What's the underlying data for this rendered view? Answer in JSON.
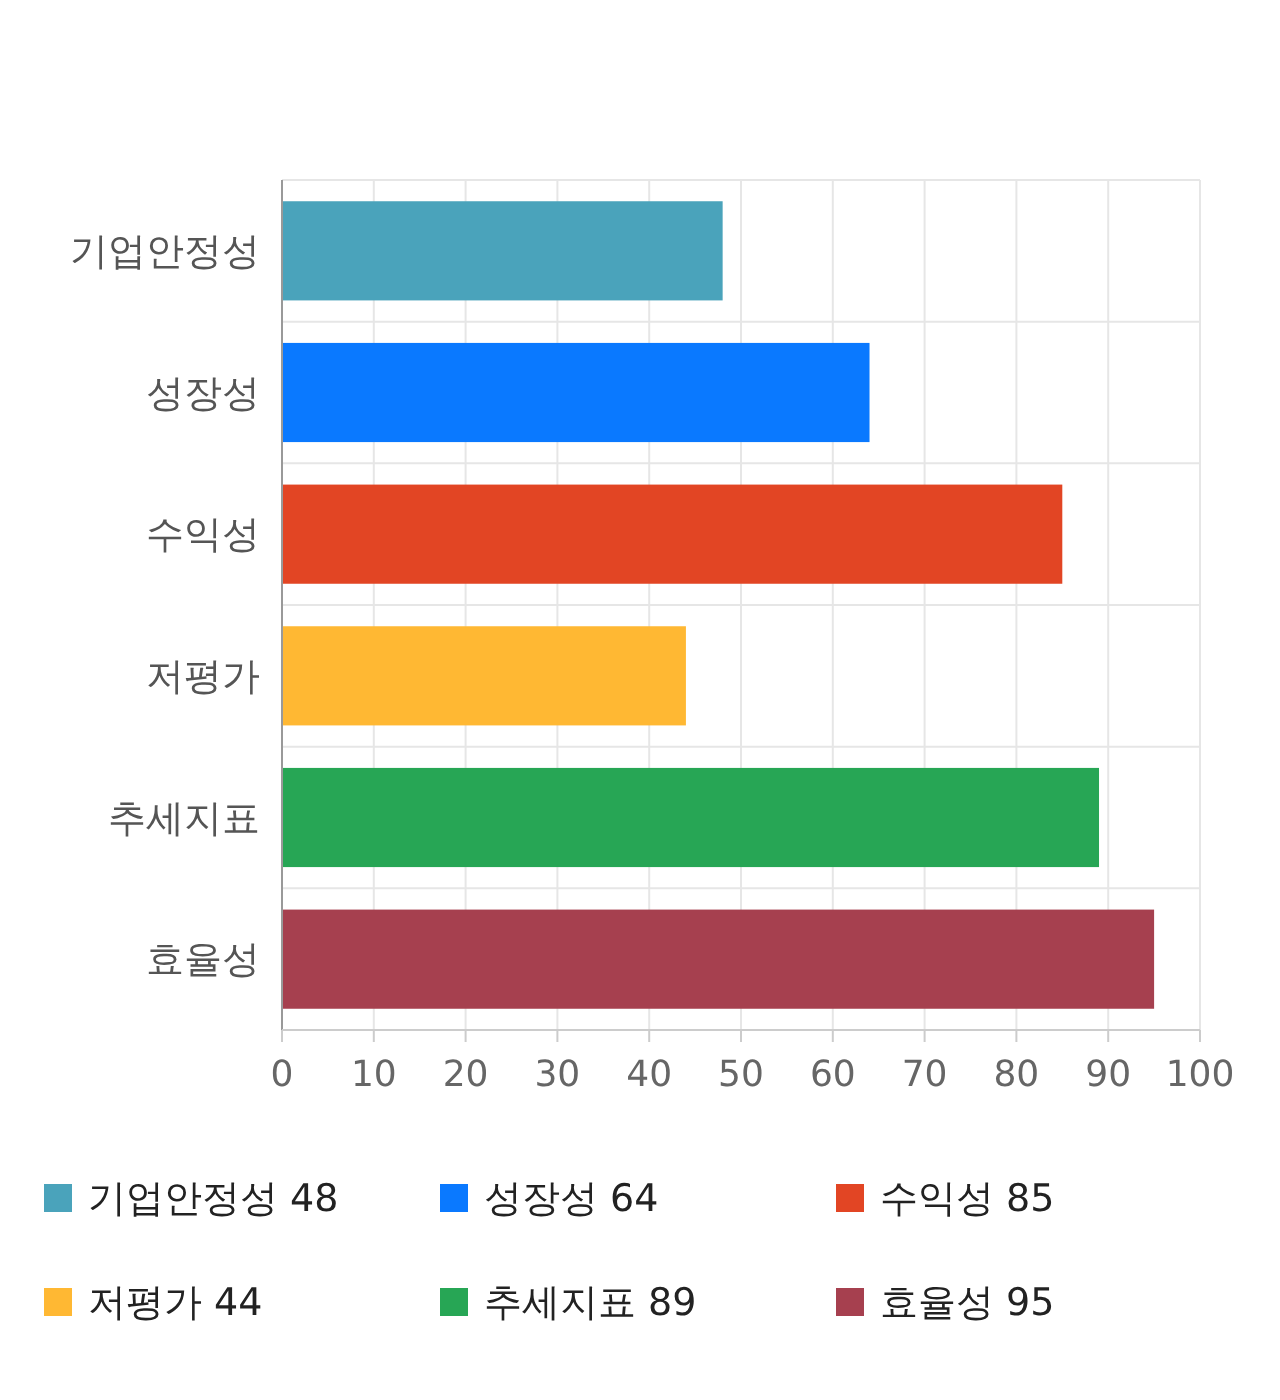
{
  "chart_data": {
    "type": "bar",
    "orientation": "horizontal",
    "stacked": true,
    "categories": [
      "기업안정성",
      "성장성",
      "수익성",
      "저평가",
      "추세지표",
      "효율성"
    ],
    "series": [
      {
        "name": "기업안정성 48",
        "color": "#4aa3bb",
        "values": [
          48,
          null,
          null,
          null,
          null,
          null
        ]
      },
      {
        "name": "성장성 64",
        "color": "#0a79ff",
        "values": [
          null,
          64,
          null,
          null,
          null,
          null
        ]
      },
      {
        "name": "수익성 85",
        "color": "#e24524",
        "values": [
          null,
          null,
          85,
          null,
          null,
          null
        ]
      },
      {
        "name": "저평가 44",
        "color": "#ffb833",
        "values": [
          null,
          null,
          null,
          44,
          null,
          null
        ]
      },
      {
        "name": "추세지표 89",
        "color": "#27a655",
        "values": [
          null,
          null,
          null,
          null,
          89,
          null
        ]
      },
      {
        "name": "효율성 95",
        "color": "#a6404f",
        "values": [
          null,
          null,
          null,
          null,
          null,
          95
        ]
      }
    ],
    "xlim": [
      0,
      100
    ],
    "xticks": [
      0,
      10,
      20,
      30,
      40,
      50,
      60,
      70,
      80,
      90,
      100
    ],
    "grid": true,
    "legend": "bottom"
  }
}
